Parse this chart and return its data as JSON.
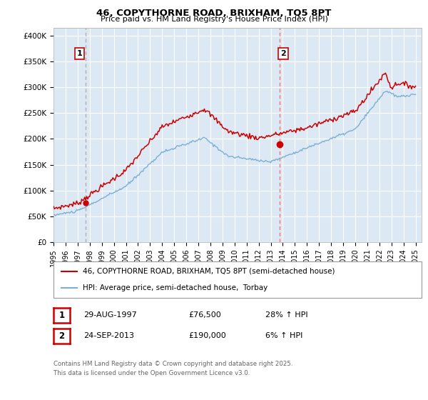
{
  "title1": "46, COPYTHORNE ROAD, BRIXHAM, TQ5 8PT",
  "title2": "Price paid vs. HM Land Registry's House Price Index (HPI)",
  "ylabel_ticks": [
    "£0",
    "£50K",
    "£100K",
    "£150K",
    "£200K",
    "£250K",
    "£300K",
    "£350K",
    "£400K"
  ],
  "ytick_vals": [
    0,
    50000,
    100000,
    150000,
    200000,
    250000,
    300000,
    350000,
    400000
  ],
  "ylim": [
    0,
    415000
  ],
  "xlim_start": 1995.0,
  "xlim_end": 2025.5,
  "sale1_x": 1997.66,
  "sale1_y": 76500,
  "sale1_label": "1",
  "sale2_x": 2013.73,
  "sale2_y": 190000,
  "sale2_label": "2",
  "sale_color": "#cc0000",
  "hpi_color": "#7ab0d4",
  "vline1_color": "#aaaaaa",
  "vline2_color": "#ff6666",
  "plot_bg_color": "#dce9f5",
  "legend_label1": "46, COPYTHORNE ROAD, BRIXHAM, TQ5 8PT (semi-detached house)",
  "legend_label2": "HPI: Average price, semi-detached house,  Torbay",
  "table_row1": [
    "1",
    "29-AUG-1997",
    "£76,500",
    "28% ↑ HPI"
  ],
  "table_row2": [
    "2",
    "24-SEP-2013",
    "£190,000",
    "6% ↑ HPI"
  ],
  "footnote": "Contains HM Land Registry data © Crown copyright and database right 2025.\nThis data is licensed under the Open Government Licence v3.0.",
  "background_color": "#ffffff",
  "grid_color": "#ffffff",
  "xtick_years": [
    1995,
    1996,
    1997,
    1998,
    1999,
    2000,
    2001,
    2002,
    2003,
    2004,
    2005,
    2006,
    2007,
    2008,
    2009,
    2010,
    2011,
    2012,
    2013,
    2014,
    2015,
    2016,
    2017,
    2018,
    2019,
    2020,
    2021,
    2022,
    2023,
    2024,
    2025
  ]
}
